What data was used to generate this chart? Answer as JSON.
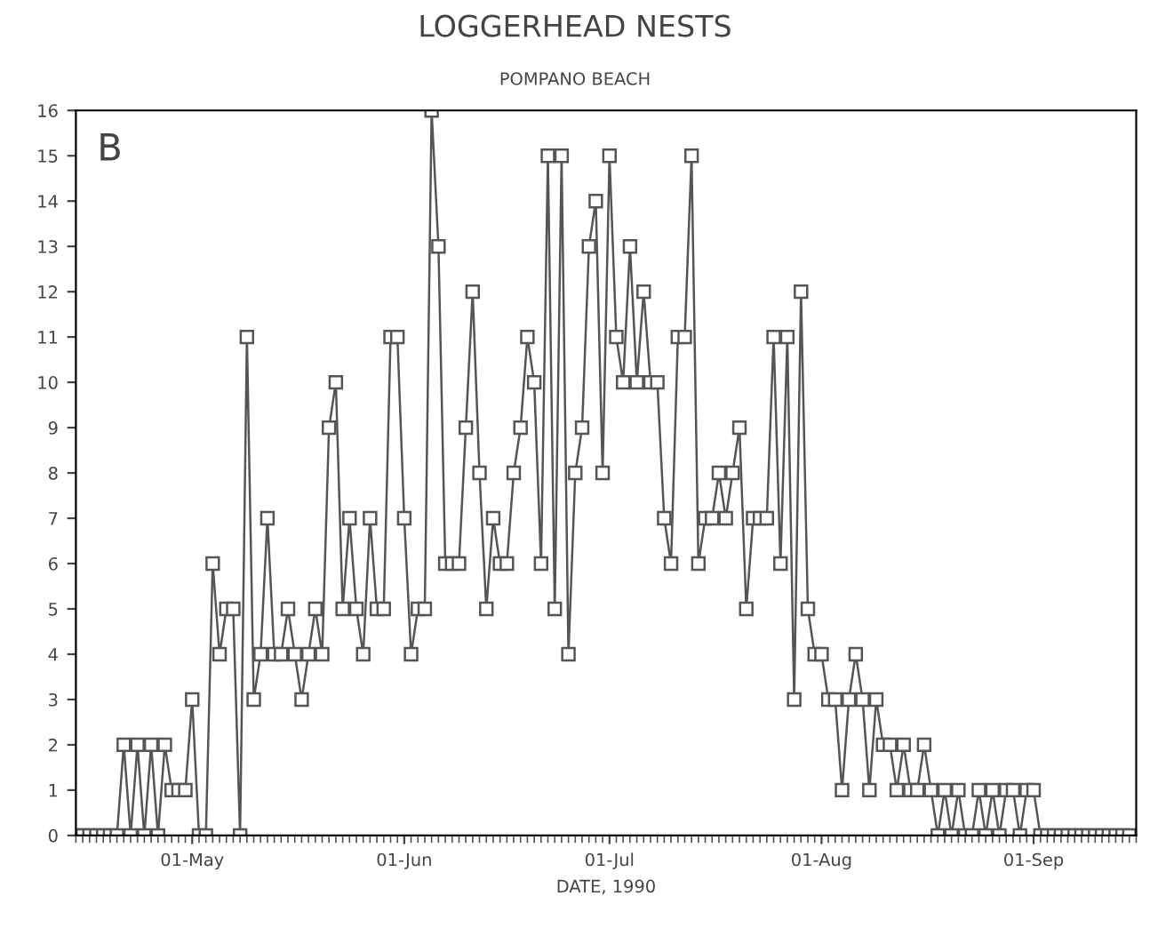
{
  "chart_data": {
    "type": "line",
    "title": "LOGGERHEAD NESTS",
    "subtitle": "POMPANO BEACH",
    "xlabel": "DATE, 1990",
    "annotations": [
      "B"
    ],
    "x": [
      "1990-04-14",
      "1990-04-15",
      "1990-04-16",
      "1990-04-17",
      "1990-04-18",
      "1990-04-19",
      "1990-04-20",
      "1990-04-21",
      "1990-04-22",
      "1990-04-23",
      "1990-04-24",
      "1990-04-25",
      "1990-04-26",
      "1990-04-27",
      "1990-04-28",
      "1990-04-29",
      "1990-04-30",
      "1990-05-01",
      "1990-05-02",
      "1990-05-03",
      "1990-05-04",
      "1990-05-05",
      "1990-05-06",
      "1990-05-07",
      "1990-05-08",
      "1990-05-09",
      "1990-05-10",
      "1990-05-11",
      "1990-05-12",
      "1990-05-13",
      "1990-05-14",
      "1990-05-15",
      "1990-05-16",
      "1990-05-17",
      "1990-05-18",
      "1990-05-19",
      "1990-05-20",
      "1990-05-21",
      "1990-05-22",
      "1990-05-23",
      "1990-05-24",
      "1990-05-25",
      "1990-05-26",
      "1990-05-27",
      "1990-05-28",
      "1990-05-29",
      "1990-05-30",
      "1990-05-31",
      "1990-06-01",
      "1990-06-02",
      "1990-06-03",
      "1990-06-04",
      "1990-06-05",
      "1990-06-06",
      "1990-06-07",
      "1990-06-08",
      "1990-06-09",
      "1990-06-10",
      "1990-06-11",
      "1990-06-12",
      "1990-06-13",
      "1990-06-14",
      "1990-06-15",
      "1990-06-16",
      "1990-06-17",
      "1990-06-18",
      "1990-06-19",
      "1990-06-20",
      "1990-06-21",
      "1990-06-22",
      "1990-06-23",
      "1990-06-24",
      "1990-06-25",
      "1990-06-26",
      "1990-06-27",
      "1990-06-28",
      "1990-06-29",
      "1990-06-30",
      "1990-07-01",
      "1990-07-02",
      "1990-07-03",
      "1990-07-04",
      "1990-07-05",
      "1990-07-06",
      "1990-07-07",
      "1990-07-08",
      "1990-07-09",
      "1990-07-10",
      "1990-07-11",
      "1990-07-12",
      "1990-07-13",
      "1990-07-14",
      "1990-07-15",
      "1990-07-16",
      "1990-07-17",
      "1990-07-18",
      "1990-07-19",
      "1990-07-20",
      "1990-07-21",
      "1990-07-22",
      "1990-07-23",
      "1990-07-24",
      "1990-07-25",
      "1990-07-26",
      "1990-07-27",
      "1990-07-28",
      "1990-07-29",
      "1990-07-30",
      "1990-07-31",
      "1990-08-01",
      "1990-08-02",
      "1990-08-03",
      "1990-08-04",
      "1990-08-05",
      "1990-08-06",
      "1990-08-07",
      "1990-08-08",
      "1990-08-09",
      "1990-08-10",
      "1990-08-11",
      "1990-08-12",
      "1990-08-13",
      "1990-08-14",
      "1990-08-15",
      "1990-08-16",
      "1990-08-17",
      "1990-08-18",
      "1990-08-19",
      "1990-08-20",
      "1990-08-21",
      "1990-08-22",
      "1990-08-23",
      "1990-08-24",
      "1990-08-25",
      "1990-08-26",
      "1990-08-27",
      "1990-08-28",
      "1990-08-29",
      "1990-08-30",
      "1990-08-31",
      "1990-09-01",
      "1990-09-02",
      "1990-09-03",
      "1990-09-04",
      "1990-09-05",
      "1990-09-06",
      "1990-09-07",
      "1990-09-08",
      "1990-09-09",
      "1990-09-10",
      "1990-09-11",
      "1990-09-12",
      "1990-09-13",
      "1990-09-14",
      "1990-09-15"
    ],
    "series": [
      {
        "color": "#555555",
        "values": [
          0,
          0,
          0,
          0,
          0,
          0,
          0,
          2,
          0,
          2,
          0,
          2,
          0,
          2,
          1,
          1,
          1,
          3,
          0,
          0,
          6,
          4,
          5,
          5,
          0,
          11,
          3,
          4,
          7,
          4,
          4,
          5,
          4,
          3,
          4,
          5,
          4,
          9,
          10,
          5,
          7,
          5,
          4,
          7,
          5,
          5,
          11,
          11,
          7,
          4,
          5,
          5,
          16,
          13,
          6,
          6,
          6,
          9,
          12,
          8,
          5,
          7,
          6,
          6,
          8,
          9,
          11,
          10,
          6,
          15,
          5,
          15,
          4,
          8,
          9,
          13,
          14,
          8,
          15,
          11,
          10,
          13,
          10,
          12,
          10,
          10,
          7,
          6,
          11,
          11,
          15,
          6,
          7,
          7,
          8,
          7,
          8,
          9,
          5,
          7,
          7,
          7,
          11,
          6,
          11,
          3,
          12,
          5,
          4,
          4,
          3,
          3,
          1,
          3,
          4,
          3,
          1,
          3,
          2,
          2,
          1,
          2,
          1,
          1,
          2,
          1,
          0,
          1,
          0,
          1,
          0,
          0,
          1,
          0,
          1,
          0,
          1,
          1,
          0,
          1,
          1,
          0,
          0,
          0,
          0,
          0,
          0,
          0,
          0,
          0,
          0,
          0,
          0,
          0,
          0
        ]
      }
    ],
    "xlim": [
      "1990-04-14",
      "1990-09-16"
    ],
    "xticks": [
      {
        "value": "1990-05-01",
        "label": "01-May"
      },
      {
        "value": "1990-06-01",
        "label": "01-Jun"
      },
      {
        "value": "1990-07-01",
        "label": "01-Jul"
      },
      {
        "value": "1990-08-01",
        "label": "01-Aug"
      },
      {
        "value": "1990-09-01",
        "label": "01-Sep"
      }
    ],
    "ylim": [
      0,
      16
    ],
    "yticks": [
      0,
      1,
      2,
      3,
      4,
      5,
      6,
      7,
      8,
      9,
      10,
      11,
      12,
      13,
      14,
      15,
      16
    ],
    "marker": "square",
    "line_style": "solid",
    "grid": false,
    "legend": false
  }
}
